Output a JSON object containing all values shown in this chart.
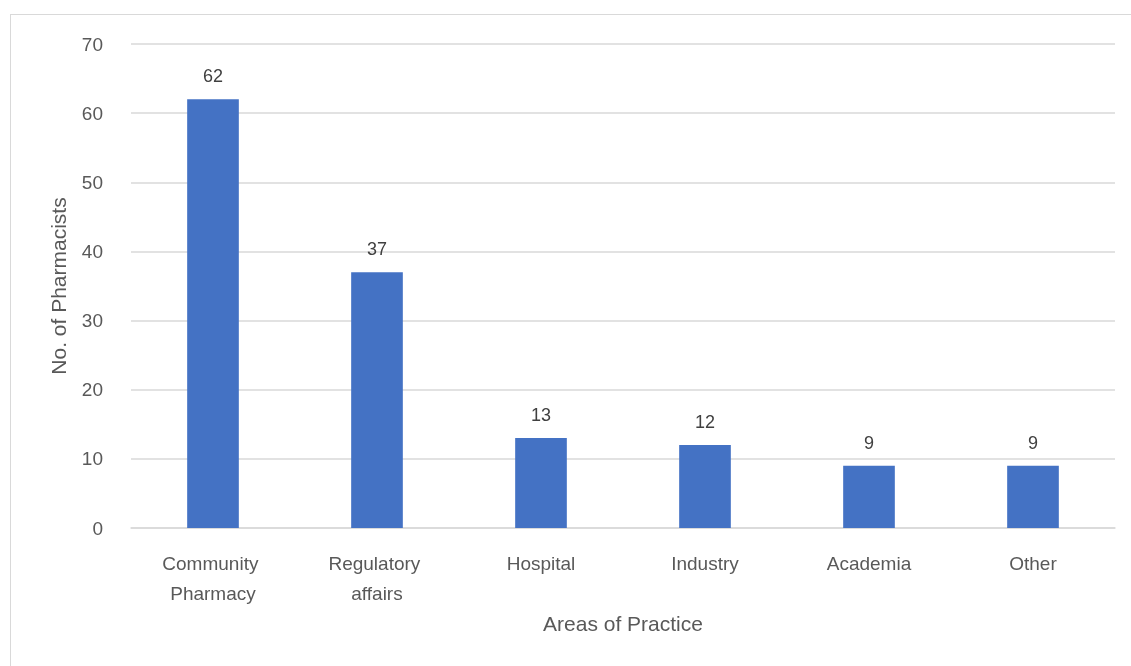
{
  "chart_data": {
    "type": "bar",
    "xlabel": "Areas of Practice",
    "ylabel": "No. of Pharmacists",
    "categories": [
      "Community Pharmacy",
      "Regulatory affairs",
      "Hospital",
      "Industry",
      "Academia",
      "Other"
    ],
    "values": [
      62,
      37,
      13,
      12,
      9,
      9
    ],
    "color": "#4472c4",
    "ylim": [
      0,
      70
    ],
    "yticks": [
      0,
      10,
      20,
      30,
      40,
      50,
      60,
      70
    ],
    "grid": "y",
    "data_labels": true
  }
}
